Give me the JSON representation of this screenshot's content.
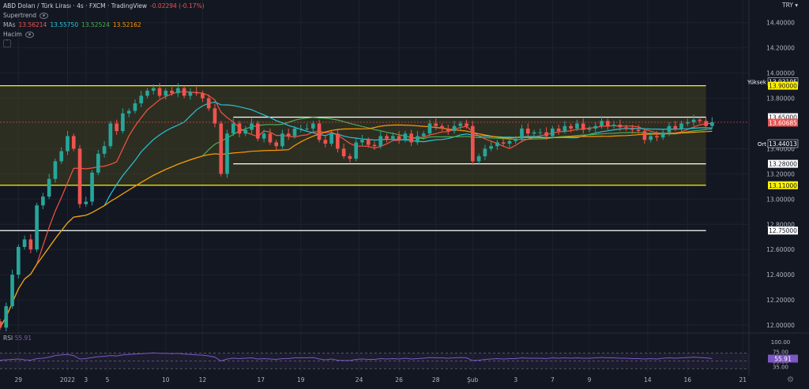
{
  "header": {
    "symbol": "ABD Doları / Türk Lirası · 4s · FXCM · TradingView",
    "change": "-0.02294 (-0.17%)",
    "supertrend_label": "Supertrend",
    "mas_label": "MAs",
    "mas_values": [
      {
        "value": "13.56214",
        "color": "#ef5350"
      },
      {
        "value": "13.55750",
        "color": "#26c6da"
      },
      {
        "value": "13.52524",
        "color": "#4caf50"
      },
      {
        "value": "13.52162",
        "color": "#ff9800"
      }
    ],
    "volume_label": "Hacim",
    "currency": "TRY"
  },
  "rsi": {
    "label": "RSI",
    "value": "55.91"
  },
  "colors": {
    "background": "#131722",
    "up": "#26a69a",
    "down": "#ef5350",
    "channel_fill": "#434123",
    "yellow_line": "#fff200",
    "white_line": "#ffffff",
    "ma_red": "#f5533d",
    "ma_cyan": "#26c6da",
    "ma_green": "#4caf50",
    "ma_orange": "#ff9800",
    "rsi_line": "#7e57c2"
  },
  "chart_data": {
    "type": "candlestick",
    "price_axis": {
      "ylim": [
        11.95,
        14.58
      ],
      "ticks": [
        "14.40000",
        "14.20000",
        "14.00000",
        "13.80000",
        "13.40000",
        "13.20000",
        "13.00000",
        "12.80000",
        "12.60000",
        "12.40000",
        "12.20000",
        "12.00000"
      ]
    },
    "price_labels": [
      {
        "text": "Yüksek",
        "value": "13.93195",
        "y": 13.93195,
        "style": "dark"
      },
      {
        "text": "",
        "value": "13.90000",
        "y": 13.9,
        "style": "yellow"
      },
      {
        "text": "",
        "value": "13.65000",
        "y": 13.65,
        "style": "white"
      },
      {
        "text": "",
        "value": "13.60685",
        "y": 13.60685,
        "style": "red"
      },
      {
        "text": "Ort",
        "value": "13.44013",
        "y": 13.44013,
        "style": "dark"
      },
      {
        "text": "",
        "value": "13.28000",
        "y": 13.28,
        "style": "white"
      },
      {
        "text": "",
        "value": "13.11000",
        "y": 13.11,
        "style": "yellow"
      },
      {
        "text": "",
        "value": "12.75000",
        "y": 12.75,
        "style": "white"
      }
    ],
    "channel": {
      "top": 13.9,
      "bottom": 13.11,
      "x_start": 0,
      "x_end": 115
    },
    "horizontal_lines": [
      {
        "y": 13.65,
        "x_start": 38,
        "x_end": 115,
        "color": "white"
      },
      {
        "y": 13.28,
        "x_start": 38,
        "x_end": 115,
        "color": "white"
      },
      {
        "y": 12.75,
        "x_start": 0,
        "x_end": 115,
        "color": "white"
      }
    ],
    "x_axis": {
      "range": [
        0,
        122
      ],
      "ticks": [
        {
          "label": "29",
          "i": 3
        },
        {
          "label": "2022",
          "i": 11
        },
        {
          "label": "3",
          "i": 14
        },
        {
          "label": "5",
          "i": 17.5
        },
        {
          "label": "10",
          "i": 27
        },
        {
          "label": "12",
          "i": 33
        },
        {
          "label": "17",
          "i": 42.5
        },
        {
          "label": "19",
          "i": 49
        },
        {
          "label": "24",
          "i": 58.5
        },
        {
          "label": "26",
          "i": 65
        },
        {
          "label": "28",
          "i": 71
        },
        {
          "label": "Şub",
          "i": 77
        },
        {
          "label": "3",
          "i": 84
        },
        {
          "label": "7",
          "i": 90
        },
        {
          "label": "9",
          "i": 96
        },
        {
          "label": "14",
          "i": 105.5
        },
        {
          "label": "16",
          "i": 112
        },
        {
          "label": "21",
          "i": 121
        }
      ]
    },
    "series": [
      {
        "name": "close",
        "values": [
          11.98,
          12.15,
          12.4,
          12.62,
          12.68,
          12.6,
          12.95,
          13.02,
          13.16,
          13.3,
          13.38,
          13.5,
          13.4,
          12.96,
          12.98,
          13.21,
          13.36,
          13.42,
          13.6,
          13.54,
          13.68,
          13.7,
          13.76,
          13.82,
          13.86,
          13.88,
          13.82,
          13.86,
          13.84,
          13.88,
          13.82,
          13.85,
          13.84,
          13.8,
          13.72,
          13.6,
          13.2,
          13.52,
          13.6,
          13.52,
          13.55,
          13.6,
          13.48,
          13.52,
          13.45,
          13.42,
          13.52,
          13.5,
          13.56,
          13.56,
          13.56,
          13.6,
          13.47,
          13.44,
          13.52,
          13.4,
          13.34,
          13.32,
          13.45,
          13.47,
          13.43,
          13.42,
          13.5,
          13.48,
          13.5,
          13.47,
          13.52,
          13.45,
          13.5,
          13.52,
          13.6,
          13.58,
          13.56,
          13.54,
          13.58,
          13.6,
          13.58,
          13.3,
          13.34,
          13.4,
          13.42,
          13.45,
          13.44,
          13.46,
          13.48,
          13.56,
          13.52,
          13.53,
          13.53,
          13.5,
          13.56,
          13.54,
          13.58,
          13.56,
          13.6,
          13.55,
          13.56,
          13.58,
          13.62,
          13.58,
          13.59,
          13.57,
          13.56,
          13.55,
          13.54,
          13.47,
          13.5,
          13.49,
          13.53,
          13.58,
          13.56,
          13.6,
          13.61,
          13.63,
          13.62,
          13.58,
          13.61
        ]
      },
      {
        "name": "RSI",
        "values": [
          52,
          53,
          54,
          55,
          53,
          52,
          56,
          57,
          60,
          64,
          66,
          67,
          64,
          55,
          56,
          59,
          61,
          62,
          64,
          63,
          66,
          67,
          68,
          69,
          70,
          71,
          70,
          70,
          69,
          70,
          68,
          67,
          66,
          65,
          63,
          60,
          50,
          55,
          57,
          56,
          57,
          58,
          55,
          56,
          55,
          54,
          56,
          56,
          58,
          58,
          58,
          59,
          55,
          53,
          55,
          52,
          51,
          51,
          54,
          55,
          54,
          54,
          56,
          55,
          56,
          55,
          57,
          55,
          56,
          57,
          59,
          58,
          58,
          57,
          58,
          59,
          58,
          51,
          52,
          54,
          55,
          56,
          55,
          56,
          56,
          58,
          57,
          57,
          57,
          56,
          58,
          57,
          58,
          57,
          58,
          57,
          57,
          58,
          59,
          58,
          58,
          57,
          57,
          56,
          56,
          55,
          56,
          55,
          57,
          58,
          57,
          58,
          59,
          60,
          59,
          58,
          56
        ]
      }
    ]
  }
}
